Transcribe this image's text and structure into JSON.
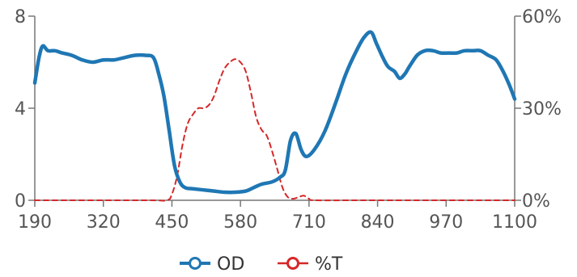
{
  "chart_data": {
    "type": "line",
    "title": "",
    "xlabel": "",
    "ylabel": "",
    "xlim": [
      190,
      1100
    ],
    "ylim_left": [
      0,
      8
    ],
    "ylim_right": [
      0,
      60
    ],
    "right_axis_unit": "%",
    "x_ticks": [
      "190",
      "320",
      "450",
      "580",
      "710",
      "840",
      "970",
      "1100"
    ],
    "y_ticks_left": [
      "0",
      "4",
      "8"
    ],
    "y_ticks_right": [
      "0%",
      "30%",
      "60%"
    ],
    "grid": false,
    "legend_position": "bottom",
    "series": [
      {
        "name": "OD",
        "axis": "left",
        "color": "#1f77b4",
        "style": "solid",
        "points": [
          [
            190,
            5.1
          ],
          [
            198,
            6.2
          ],
          [
            205,
            6.7
          ],
          [
            215,
            6.5
          ],
          [
            228,
            6.5
          ],
          [
            242,
            6.4
          ],
          [
            260,
            6.3
          ],
          [
            280,
            6.1
          ],
          [
            300,
            6.0
          ],
          [
            320,
            6.1
          ],
          [
            340,
            6.1
          ],
          [
            360,
            6.2
          ],
          [
            380,
            6.3
          ],
          [
            400,
            6.3
          ],
          [
            415,
            6.2
          ],
          [
            425,
            5.5
          ],
          [
            435,
            4.5
          ],
          [
            445,
            3.0
          ],
          [
            455,
            1.5
          ],
          [
            465,
            0.8
          ],
          [
            475,
            0.55
          ],
          [
            490,
            0.5
          ],
          [
            510,
            0.45
          ],
          [
            530,
            0.4
          ],
          [
            550,
            0.35
          ],
          [
            570,
            0.35
          ],
          [
            590,
            0.4
          ],
          [
            605,
            0.55
          ],
          [
            620,
            0.7
          ],
          [
            640,
            0.8
          ],
          [
            655,
            1.0
          ],
          [
            665,
            1.3
          ],
          [
            675,
            2.6
          ],
          [
            685,
            2.9
          ],
          [
            695,
            2.2
          ],
          [
            705,
            1.9
          ],
          [
            720,
            2.2
          ],
          [
            740,
            3.0
          ],
          [
            760,
            4.2
          ],
          [
            780,
            5.5
          ],
          [
            800,
            6.5
          ],
          [
            815,
            7.1
          ],
          [
            828,
            7.3
          ],
          [
            838,
            6.8
          ],
          [
            850,
            6.2
          ],
          [
            860,
            5.8
          ],
          [
            872,
            5.6
          ],
          [
            882,
            5.3
          ],
          [
            892,
            5.5
          ],
          [
            900,
            5.8
          ],
          [
            915,
            6.3
          ],
          [
            930,
            6.5
          ],
          [
            945,
            6.5
          ],
          [
            960,
            6.4
          ],
          [
            975,
            6.4
          ],
          [
            990,
            6.4
          ],
          [
            1005,
            6.5
          ],
          [
            1020,
            6.5
          ],
          [
            1035,
            6.5
          ],
          [
            1050,
            6.3
          ],
          [
            1065,
            6.1
          ],
          [
            1078,
            5.6
          ],
          [
            1090,
            5.0
          ],
          [
            1100,
            4.4
          ]
        ]
      },
      {
        "name": "%T",
        "axis": "right",
        "color": "#d62728",
        "style": "dashed",
        "points": [
          [
            190,
            0
          ],
          [
            400,
            0
          ],
          [
            440,
            0
          ],
          [
            450,
            2
          ],
          [
            460,
            8
          ],
          [
            470,
            18
          ],
          [
            480,
            25
          ],
          [
            490,
            28
          ],
          [
            500,
            30
          ],
          [
            510,
            30
          ],
          [
            520,
            31
          ],
          [
            530,
            34
          ],
          [
            540,
            39
          ],
          [
            550,
            43
          ],
          [
            560,
            45
          ],
          [
            570,
            46
          ],
          [
            580,
            45
          ],
          [
            590,
            42
          ],
          [
            600,
            35
          ],
          [
            610,
            27
          ],
          [
            620,
            23
          ],
          [
            630,
            21
          ],
          [
            640,
            16
          ],
          [
            650,
            10
          ],
          [
            660,
            4
          ],
          [
            670,
            1
          ],
          [
            680,
            0.5
          ],
          [
            690,
            1
          ],
          [
            700,
            1.5
          ],
          [
            710,
            0.5
          ],
          [
            720,
            0
          ],
          [
            800,
            0
          ],
          [
            900,
            0
          ],
          [
            1100,
            0
          ]
        ]
      }
    ]
  }
}
